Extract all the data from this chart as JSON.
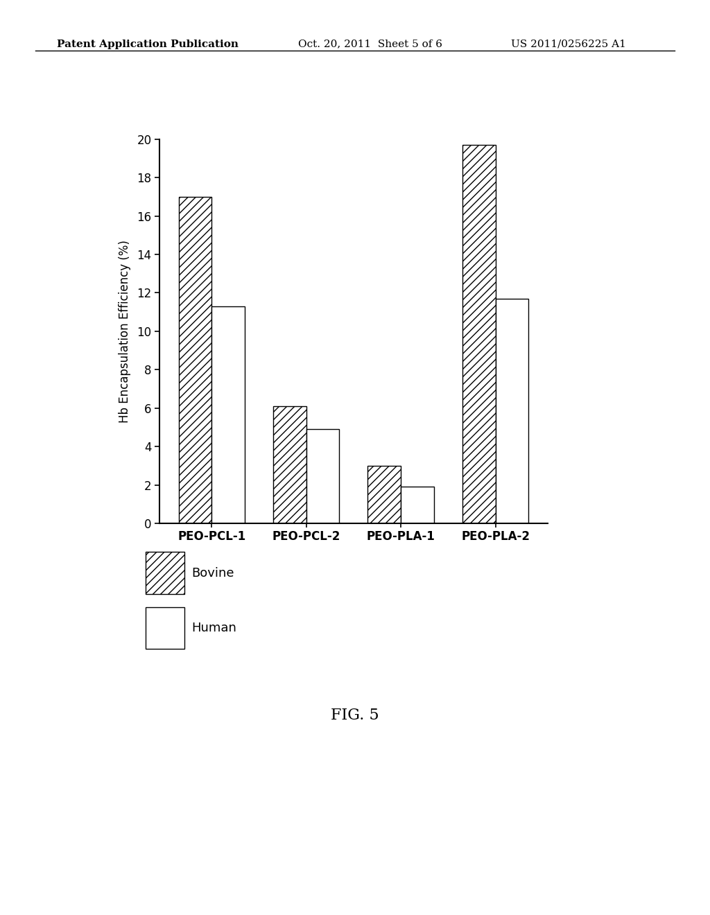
{
  "categories": [
    "PEO-PCL-1",
    "PEO-PCL-2",
    "PEO-PLA-1",
    "PEO-PLA-2"
  ],
  "bovine_values": [
    17.0,
    6.1,
    3.0,
    19.7
  ],
  "human_values": [
    11.3,
    4.9,
    1.9,
    11.7
  ],
  "ylabel": "Hb Encapsulation Efficiency (%)",
  "ylim": [
    0,
    20
  ],
  "yticks": [
    0,
    2,
    4,
    6,
    8,
    10,
    12,
    14,
    16,
    18,
    20
  ],
  "legend_labels": [
    "Bovine",
    "Human"
  ],
  "figure_label": "FIG. 5",
  "header_left": "Patent Application Publication",
  "header_mid": "Oct. 20, 2011  Sheet 5 of 6",
  "header_right": "US 2011/0256225 A1",
  "bar_width": 0.35,
  "hatch_pattern": "///",
  "background_color": "#ffffff",
  "bar_edge_color": "#000000",
  "font_size_ticks": 12,
  "font_size_ylabel": 12,
  "font_size_legend": 13,
  "font_size_fig_label": 16,
  "font_size_header": 11
}
